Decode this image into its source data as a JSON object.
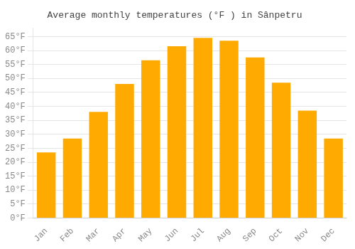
{
  "chart_data": {
    "type": "bar",
    "title": "Average monthly temperatures (°F ) in Sânpetru",
    "categories": [
      "Jan",
      "Feb",
      "Mar",
      "Apr",
      "May",
      "Jun",
      "Jul",
      "Aug",
      "Sep",
      "Oct",
      "Nov",
      "Dec"
    ],
    "values": [
      23.5,
      28.5,
      38.0,
      48.0,
      56.5,
      61.5,
      64.5,
      63.5,
      57.5,
      48.5,
      38.5,
      28.5
    ],
    "color": "#FFAA00",
    "ylim": [
      0,
      68
    ],
    "yticks": [
      {
        "value": 0,
        "label": "0°F"
      },
      {
        "value": 5,
        "label": "5°F"
      },
      {
        "value": 10,
        "label": "10°F"
      },
      {
        "value": 15,
        "label": "15°F"
      },
      {
        "value": 20,
        "label": "20°F"
      },
      {
        "value": 25,
        "label": "25°F"
      },
      {
        "value": 30,
        "label": "30°F"
      },
      {
        "value": 35,
        "label": "35°F"
      },
      {
        "value": 40,
        "label": "40°F"
      },
      {
        "value": 45,
        "label": "45°F"
      },
      {
        "value": 50,
        "label": "50°F"
      },
      {
        "value": 55,
        "label": "55°F"
      },
      {
        "value": 60,
        "label": "60°F"
      },
      {
        "value": 65,
        "label": "65°F"
      }
    ],
    "grid": true
  }
}
